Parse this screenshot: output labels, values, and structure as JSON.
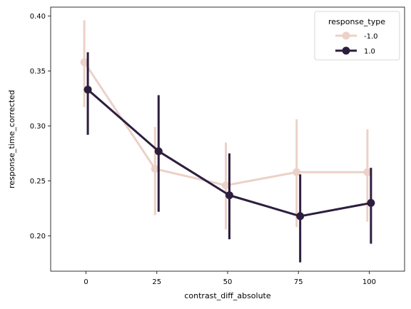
{
  "chart_data": {
    "type": "line",
    "xlabel": "contrast_diff_absolute",
    "ylabel": "response_time_corrected",
    "categories": [
      "0",
      "25",
      "50",
      "75",
      "100"
    ],
    "xlim": [
      -0.5,
      4.5
    ],
    "ylim": [
      0.168,
      0.408
    ],
    "yticks": [
      "0.20",
      "0.25",
      "0.30",
      "0.35",
      "0.40"
    ],
    "ytick_values": [
      0.2,
      0.25,
      0.3,
      0.35,
      0.4
    ],
    "legend": {
      "title": "response_type",
      "placement": "top-right"
    },
    "series": [
      {
        "name": "-1.0",
        "color": "#ecd1c8",
        "values": [
          0.358,
          0.261,
          0.246,
          0.258,
          0.258
        ],
        "ci_low": [
          0.317,
          0.219,
          0.206,
          0.208,
          0.213
        ],
        "ci_high": [
          0.396,
          0.299,
          0.285,
          0.306,
          0.297
        ]
      },
      {
        "name": "1.0",
        "color": "#2d1e3e",
        "values": [
          0.333,
          0.277,
          0.237,
          0.218,
          0.23
        ],
        "ci_low": [
          0.292,
          0.222,
          0.197,
          0.176,
          0.193
        ],
        "ci_high": [
          0.367,
          0.328,
          0.275,
          0.256,
          0.262
        ]
      }
    ]
  }
}
